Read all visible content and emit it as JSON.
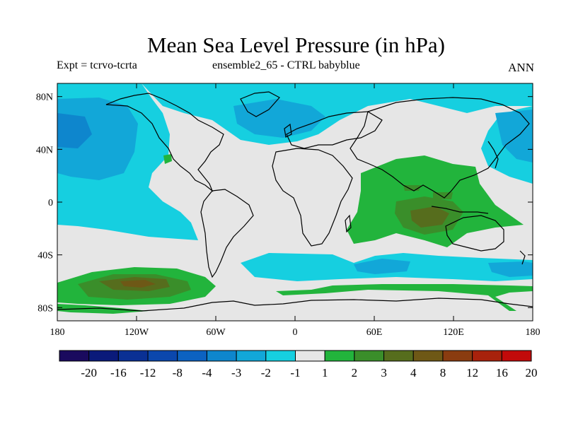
{
  "title": "Mean Sea Level Pressure (in hPa)",
  "subtitle_left": "Expt = tcrvo-tcrta",
  "subtitle_center": "ensemble2_65 - CTRL babyblue",
  "subtitle_right": "ANN",
  "x_ticks": [
    "180",
    "120W",
    "60W",
    "0",
    "60E",
    "120E",
    "180"
  ],
  "y_ticks": [
    "80N",
    "40N",
    "0",
    "40S",
    "80S"
  ],
  "colorbar": {
    "labels": [
      "-20",
      "-16",
      "-12",
      "-8",
      "-4",
      "-3",
      "-2",
      "-1",
      "1",
      "2",
      "3",
      "4",
      "8",
      "12",
      "16",
      "20"
    ],
    "colors": [
      "#1a0a5e",
      "#0a1a7a",
      "#0a3094",
      "#0b47ad",
      "#0c62c1",
      "#0e86cd",
      "#12a7d8",
      "#16cfe0",
      "#e6e6e6",
      "#22b43c",
      "#3a8e2a",
      "#566d1d",
      "#6e5816",
      "#8a3c10",
      "#a8220c",
      "#c20a0a"
    ]
  },
  "map_fill_colors": {
    "neutral": "#e6e6e6",
    "neg_1_2": "#16cfe0",
    "neg_2_3": "#12a7d8",
    "neg_3_4": "#0e86cd",
    "pos_1_2": "#22b43c",
    "pos_2_3": "#3a8e2a",
    "pos_3_4": "#566d1d",
    "pos_4_8": "#6e5816"
  }
}
